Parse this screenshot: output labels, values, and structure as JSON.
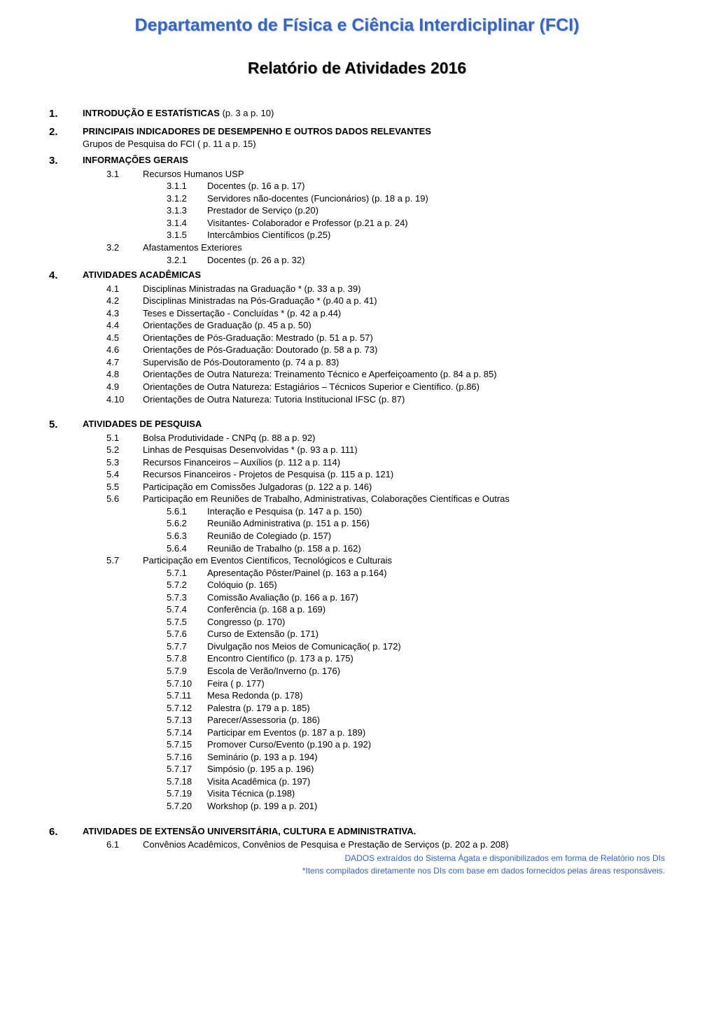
{
  "colors": {
    "accent": "#3366cc",
    "text": "#000000",
    "bg": "#ffffff"
  },
  "typography": {
    "base_font": "Verdana",
    "base_size_pt": 10,
    "title_size_pt": 19,
    "subtitle_size_pt": 17
  },
  "dept_title": "Departamento de Física e Ciência Interdiciplinar (FCI)",
  "report_title": "Relatório de Atividades 2016",
  "sections": [
    {
      "num": "1.",
      "heading": "INTRODUÇÃO E ESTATÍSTICAS",
      "pages": "(p. 3 a p. 10)"
    },
    {
      "num": "2.",
      "heading": "PRINCIPAIS INDICADORES DE DESEMPENHO E OUTROS DADOS RELEVANTES",
      "subline": "Grupos de Pesquisa do FCI ( p. 11 a p. 15)"
    },
    {
      "num": "3.",
      "heading": "INFORMAÇÕES GERAIS",
      "items": [
        {
          "num": "3.1",
          "text": "Recursos Humanos USP",
          "sub": [
            {
              "num": "3.1.1",
              "text": "Docentes  (p. 16 a p. 17)"
            },
            {
              "num": "3.1.2",
              "text": "Servidores não-docentes (Funcionários) (p. 18 a p. 19)"
            },
            {
              "num": "3.1.3",
              "text": "Prestador de Serviço (p.20)"
            },
            {
              "num": "3.1.4",
              "text": "Visitantes- Colaborador e Professor (p.21 a p. 24)"
            },
            {
              "num": "3.1.5",
              "text": "Intercâmbios Científicos (p.25)"
            }
          ]
        },
        {
          "num": "3.2",
          "text": "Afastamentos Exteriores",
          "sub": [
            {
              "num": "3.2.1",
              "text": "Docentes (p. 26 a p. 32)"
            }
          ]
        }
      ]
    },
    {
      "num": "4.",
      "heading": "ATIVIDADES ACADÊMICAS",
      "items": [
        {
          "num": "4.1",
          "text": "Disciplinas Ministradas na Graduação * (p. 33 a p. 39)"
        },
        {
          "num": "4.2",
          "text": "Disciplinas Ministradas na Pós-Graduação * (p.40 a p. 41)"
        },
        {
          "num": "4.3",
          "text": "Teses e Dissertação - Concluídas * (p. 42 a p.44)"
        },
        {
          "num": "4.4",
          "text": "Orientações de Graduação (p. 45 a p. 50)"
        },
        {
          "num": "4.5",
          "text": "Orientações de Pós-Graduação: Mestrado (p. 51 a p. 57)"
        },
        {
          "num": "4.6",
          "text": "Orientações de Pós-Graduação: Doutorado (p. 58 a p. 73)"
        },
        {
          "num": "4.7",
          "text": "Supervisão de Pós-Doutoramento (p. 74 a p. 83)"
        },
        {
          "num": "4.8",
          "text": "Orientações de Outra Natureza: Treinamento Técnico e Aperfeiçoamento (p. 84 a p. 85)"
        },
        {
          "num": "4.9",
          "text": "Orientações de Outra Natureza: Estagiários – Técnicos Superior e Científico. (p.86)"
        },
        {
          "num": "4.10",
          "text": "Orientações de Outra Natureza: Tutoria Institucional IFSC (p. 87)"
        }
      ]
    },
    {
      "num": "5.",
      "heading": "ATIVIDADES DE PESQUISA",
      "items": [
        {
          "num": "5.1",
          "text": "Bolsa Produtividade - CNPq (p. 88 a p. 92)"
        },
        {
          "num": "5.2",
          "text": "Linhas de Pesquisas Desenvolvidas * (p. 93 a p. 111)"
        },
        {
          "num": "5.3",
          "text": "Recursos Financeiros – Auxílios (p. 112 a p. 114)"
        },
        {
          "num": "5.4",
          "text": "Recursos Financeiros - Projetos de Pesquisa (p. 115 a p. 121)"
        },
        {
          "num": "5.5",
          "text": "Participação em Comissões Julgadoras (p. 122 a p. 146)"
        },
        {
          "num": "5.6",
          "text": "Participação em Reuniões de Trabalho, Administrativas, Colaborações Científicas e Outras",
          "sub": [
            {
              "num": "5.6.1",
              "text": "Interação e Pesquisa (p. 147 a p. 150)"
            },
            {
              "num": "5.6.2",
              "text": "Reunião Administrativa (p. 151 a p. 156)"
            },
            {
              "num": "5.6.3",
              "text": "Reunião de Colegiado (p. 157)"
            },
            {
              "num": "5.6.4",
              "text": "Reunião de Trabalho (p. 158 a p. 162)"
            }
          ]
        },
        {
          "num": "5.7",
          "text": "Participação em Eventos Científicos, Tecnológicos e Culturais",
          "sub": [
            {
              "num": "5.7.1",
              "text": "Apresentação Pôster/Painel (p. 163 a p.164)"
            },
            {
              "num": "5.7.2",
              "text": "Colóquio (p. 165)"
            },
            {
              "num": "5.7.3",
              "text": "Comissão Avaliação (p. 166 a p. 167)"
            },
            {
              "num": "5.7.4",
              "text": "Conferência (p. 168 a p. 169)"
            },
            {
              "num": "5.7.5",
              "text": "Congresso (p. 170)"
            },
            {
              "num": "5.7.6",
              "text": "Curso de Extensão (p. 171)"
            },
            {
              "num": "5.7.7",
              "text": "Divulgação nos Meios de Comunicação( p. 172)"
            },
            {
              "num": "5.7.8",
              "text": "Encontro Científico (p. 173 a p. 175)"
            },
            {
              "num": "5.7.9",
              "text": "Escola de Verão/Inverno (p. 176)"
            },
            {
              "num": "5.7.10",
              "text": "Feira ( p. 177)"
            },
            {
              "num": "5.7.11",
              "text": "Mesa Redonda (p. 178)"
            },
            {
              "num": "5.7.12",
              "text": "Palestra (p. 179 a p. 185)"
            },
            {
              "num": "5.7.13",
              "text": "Parecer/Assessoria (p. 186)"
            },
            {
              "num": "5.7.14",
              "text": "Participar em Eventos (p. 187 a p. 189)"
            },
            {
              "num": "5.7.15",
              "text": "Promover Curso/Evento (p.190 a p. 192)"
            },
            {
              "num": "5.7.16",
              "text": "Seminário (p. 193 a p. 194)"
            },
            {
              "num": "5.7.17",
              "text": "Simpósio (p. 195 a p. 196)"
            },
            {
              "num": "5.7.18",
              "text": "Visita Acadêmica (p. 197)"
            },
            {
              "num": "5.7.19",
              "text": "Visita Técnica (p.198)"
            },
            {
              "num": "5.7.20",
              "text": "Workshop (p. 199 a p. 201)"
            }
          ]
        }
      ]
    },
    {
      "num": "6.",
      "heading": "ATIVIDADES DE EXTENSÃO UNIVERSITÁRIA, CULTURA E ADMINISTRATIVA.",
      "items": [
        {
          "num": "6.1",
          "text": "Convênios Acadêmicos, Convênios de Pesquisa e Prestação de Serviços (p. 202 a p. 208)"
        }
      ]
    }
  ],
  "footer": {
    "line1": "DADOS extraídos do Sistema Ágata e disponibilizados em forma de Relatório nos DIs",
    "line2": "*Itens compilados diretamente nos DIs com base em dados fornecidos pelas áreas responsáveis."
  }
}
